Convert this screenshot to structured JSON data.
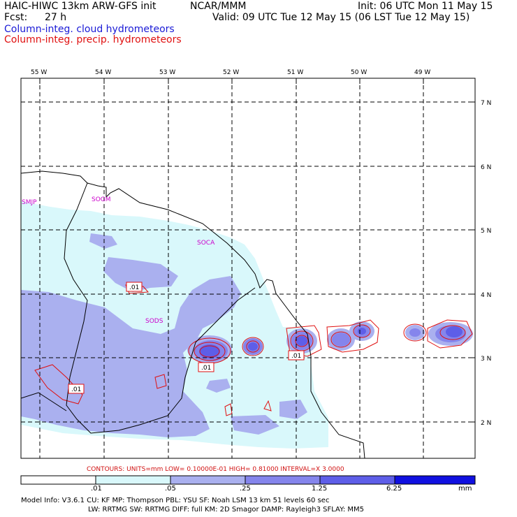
{
  "header": {
    "model": "HAIC-HIWC 13km ARW-GFS init",
    "center": "NCAR/MMM",
    "init": "Init: 06 UTC Mon 11 May 15",
    "fcst_label": "Fcst:",
    "fcst_value": "27 h",
    "valid": "Valid: 09 UTC Tue 12 May 15 (06 LST Tue 12 May 15)",
    "line_cloud": "Column-integ. cloud hydrometeors",
    "line_precip": "Column-integ. precip. hydrometeors"
  },
  "colors": {
    "cloud_text": "#1a1ad6",
    "precip_text": "#e01010",
    "shade_1": "#d9f8fb",
    "shade_2": "#aab0ef",
    "shade_3": "#8585ec",
    "shade_4": "#5e5ee8",
    "shade_5": "#2e2ee6",
    "shade_6": "#1010e0",
    "station_text": "#cc00cc"
  },
  "map": {
    "lon_labels": [
      "55 W",
      "54 W",
      "53 W",
      "52 W",
      "51 W",
      "50 W",
      "49 W"
    ],
    "lat_labels": [
      "7 N",
      "6 N",
      "5 N",
      "4 N",
      "3 N",
      "2 N"
    ],
    "stations": [
      "SMJP",
      "SOGM",
      "SOCA",
      "SODS"
    ],
    "contour_labels": [
      ".01",
      ".01",
      ".01",
      ".01"
    ]
  },
  "contour_info": {
    "text": "CONTOURS:  UNITS=mm  LOW= 0.10000E-01  HIGH= 0.81000      INTERVAL=X  3.0000"
  },
  "colorbar": {
    "labels": [
      ".01",
      ".05",
      ".25",
      "1.25",
      "6.25"
    ],
    "units": "mm"
  },
  "model_info": {
    "line1": "Model Info: V3.6.1    CU: KF       MP: Thompson    PBL: YSU       SF: Noah LSM     13 km   51 levels  60 sec",
    "line2": "LW: RRTMG   SW: RRTMG  DIFF: full   KM: 2D Smagor DAMP: Rayleigh3  SFLAY: MM5"
  }
}
